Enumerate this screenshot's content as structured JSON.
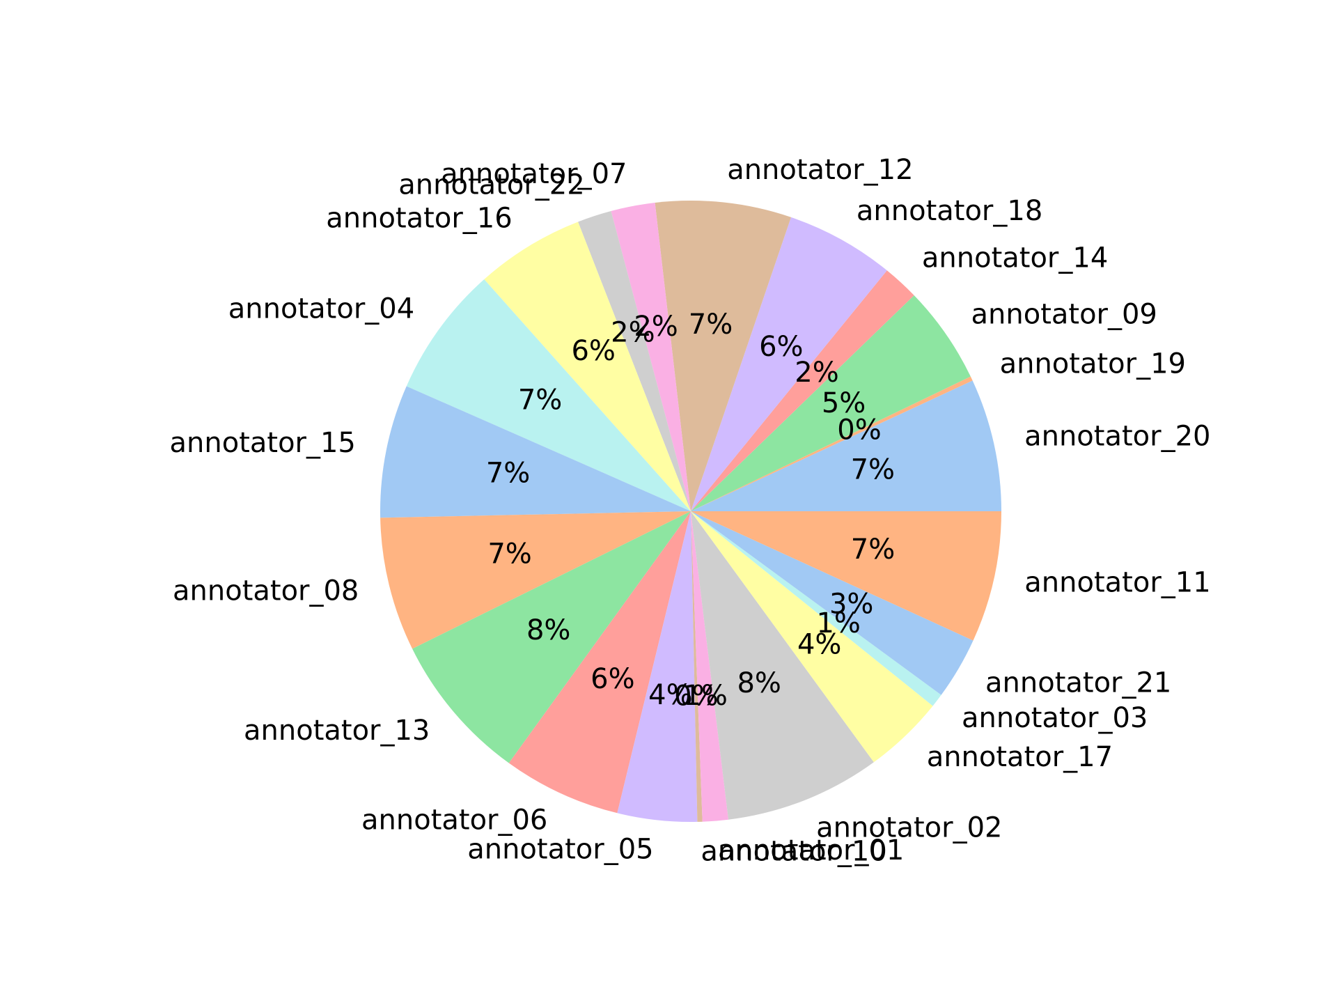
{
  "chart_data": {
    "type": "pie",
    "labels": [
      "annotator_20",
      "annotator_19",
      "annotator_09",
      "annotator_14",
      "annotator_18",
      "annotator_12",
      "annotator_07",
      "annotator_22",
      "annotator_16",
      "annotator_04",
      "annotator_15",
      "annotator_08",
      "annotator_13",
      "annotator_06",
      "annotator_05",
      "annotator_10",
      "annotator_01",
      "annotator_02",
      "annotator_17",
      "annotator_03",
      "annotator_21",
      "annotator_11"
    ],
    "values": [
      7.14,
      0.24,
      5.26,
      1.95,
      5.84,
      7.31,
      2.37,
      1.84,
      5.86,
      7.05,
      7.16,
      7.2,
      8.0,
      6.36,
      4.28,
      0.27,
      1.38,
      8.37,
      4.33,
      0.73,
      3.35,
      7.06
    ],
    "pct_labels": [
      "7%",
      "0%",
      "5%",
      "2%",
      "6%",
      "7%",
      "2%",
      "2%",
      "6%",
      "7%",
      "7%",
      "7%",
      "8%",
      "6%",
      "4%",
      "0%",
      "1%",
      "8%",
      "4%",
      "1%",
      "3%",
      "7%"
    ],
    "colors": [
      "#a1c9f4",
      "#ffb482",
      "#8de5a1",
      "#ff9f9b",
      "#d0bbff",
      "#debb9b",
      "#fab0e4",
      "#cfcfcf",
      "#fffea3",
      "#b9f2f0",
      "#a1c9f4",
      "#ffb482",
      "#8de5a1",
      "#ff9f9b",
      "#d0bbff",
      "#debb9b",
      "#fab0e4",
      "#cfcfcf",
      "#fffea3",
      "#b9f2f0",
      "#a1c9f4",
      "#ffb482"
    ],
    "start_angle_deg": 0,
    "direction": "counterclockwise",
    "title": ""
  }
}
